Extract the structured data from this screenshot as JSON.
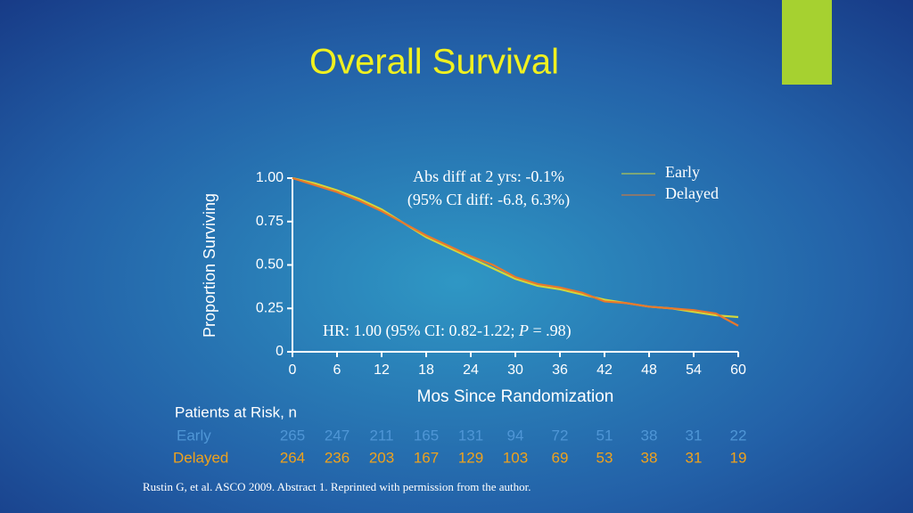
{
  "chart_data": {
    "type": "line",
    "title": "Overall Survival",
    "x_label": "Mos Since Randomization",
    "y_label": "Proportion Surviving",
    "x": [
      0,
      3,
      6,
      9,
      12,
      15,
      18,
      21,
      24,
      27,
      30,
      33,
      36,
      39,
      42,
      45,
      48,
      51,
      54,
      57,
      60
    ],
    "series": [
      {
        "name": "Early",
        "color": "#d2d83c",
        "values": [
          1.0,
          0.97,
          0.93,
          0.88,
          0.82,
          0.74,
          0.66,
          0.6,
          0.54,
          0.48,
          0.42,
          0.38,
          0.36,
          0.33,
          0.3,
          0.28,
          0.26,
          0.25,
          0.23,
          0.21,
          0.2
        ]
      },
      {
        "name": "Delayed",
        "color": "#e9782c",
        "values": [
          1.0,
          0.96,
          0.92,
          0.87,
          0.81,
          0.74,
          0.67,
          0.61,
          0.55,
          0.5,
          0.43,
          0.39,
          0.37,
          0.34,
          0.29,
          0.28,
          0.26,
          0.25,
          0.24,
          0.22,
          0.15
        ]
      }
    ],
    "xlim": [
      0,
      60
    ],
    "xticks": [
      0,
      6,
      12,
      18,
      24,
      30,
      36,
      42,
      48,
      54,
      60
    ],
    "ylim": [
      0,
      1
    ],
    "yticks": [
      {
        "value": 1,
        "label": "1.00"
      },
      0.75,
      {
        "value": 0.5,
        "label": "0.50"
      },
      0.25,
      0
    ],
    "annotations": [
      "Abs diff at 2 yrs: -0.1%",
      "(95% CI diff: -6.8, 6.3%)",
      "HR: 1.00 (95% CI: 0.82-1.22; ",
      "P",
      " = .98)"
    ],
    "legend_position": "upper right",
    "risk_table": {
      "title": "Patients at Risk, n",
      "rows": [
        {
          "name": "Early",
          "color": "#4f96d6",
          "values": [
            265,
            247,
            211,
            165,
            131,
            94,
            72,
            51,
            38,
            31,
            22
          ]
        },
        {
          "name": "Delayed",
          "color": "#f0a21c",
          "values": [
            264,
            236,
            203,
            167,
            129,
            103,
            69,
            53,
            38,
            31,
            19
          ]
        }
      ]
    }
  },
  "footnote": "Rustin G, et al. ASCO 2009. Abstract 1. Reprinted with permission from the author."
}
